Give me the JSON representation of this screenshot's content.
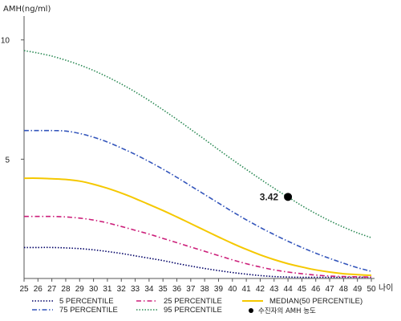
{
  "chart_data": {
    "type": "line",
    "ylabel": "AMH(ng/ml)",
    "xlabel": "나이",
    "xlim": [
      25,
      50
    ],
    "ylim": [
      0,
      11
    ],
    "x_ticks": [
      25,
      26,
      27,
      28,
      29,
      30,
      31,
      32,
      33,
      34,
      35,
      36,
      37,
      38,
      39,
      40,
      41,
      42,
      43,
      44,
      45,
      46,
      47,
      48,
      49,
      50
    ],
    "y_ticks": [
      5,
      10
    ],
    "grid": false,
    "legend_position": "bottom",
    "x": [
      25,
      26,
      27,
      28,
      29,
      30,
      31,
      32,
      33,
      34,
      35,
      36,
      37,
      38,
      39,
      40,
      41,
      42,
      43,
      44,
      45,
      46,
      47,
      48,
      49,
      50
    ],
    "series": [
      {
        "name": "5 PERCENTILE",
        "color": "#000066",
        "dash": "1.5,2",
        "values": [
          1.3,
          1.3,
          1.3,
          1.28,
          1.25,
          1.2,
          1.13,
          1.05,
          0.95,
          0.85,
          0.75,
          0.63,
          0.52,
          0.42,
          0.33,
          0.25,
          0.18,
          0.12,
          0.08,
          0.06,
          0.05,
          0.05,
          0.05,
          0.05,
          0.05,
          0.05
        ]
      },
      {
        "name": "25 PERCENTILE",
        "color": "#cc1f7a",
        "dash": "6,3,1.5,3",
        "values": [
          2.6,
          2.6,
          2.6,
          2.58,
          2.53,
          2.45,
          2.33,
          2.18,
          2.02,
          1.86,
          1.68,
          1.5,
          1.32,
          1.14,
          0.96,
          0.78,
          0.62,
          0.48,
          0.36,
          0.27,
          0.2,
          0.14,
          0.1,
          0.08,
          0.07,
          0.06
        ]
      },
      {
        "name": "MEDIAN(50 PERCENTILE)",
        "color": "#f5c800",
        "dash": "",
        "values": [
          4.2,
          4.2,
          4.18,
          4.15,
          4.08,
          3.95,
          3.78,
          3.58,
          3.35,
          3.1,
          2.85,
          2.58,
          2.3,
          2.02,
          1.74,
          1.47,
          1.22,
          0.99,
          0.79,
          0.62,
          0.48,
          0.36,
          0.27,
          0.2,
          0.16,
          0.13
        ]
      },
      {
        "name": "75 PERCENTILE",
        "color": "#3355bb",
        "dash": "6,2.5,1.5,2.5",
        "values": [
          6.2,
          6.2,
          6.2,
          6.18,
          6.08,
          5.92,
          5.72,
          5.47,
          5.2,
          4.9,
          4.58,
          4.24,
          3.88,
          3.52,
          3.16,
          2.8,
          2.46,
          2.14,
          1.84,
          1.56,
          1.3,
          1.06,
          0.84,
          0.64,
          0.45,
          0.3
        ]
      },
      {
        "name": "95 PERCENTILE",
        "color": "#2e8b57",
        "dash": "1.5,2",
        "values": [
          9.55,
          9.45,
          9.32,
          9.15,
          8.95,
          8.72,
          8.45,
          8.15,
          7.82,
          7.46,
          7.07,
          6.67,
          6.25,
          5.83,
          5.4,
          4.98,
          4.57,
          4.17,
          3.78,
          3.41,
          3.05,
          2.72,
          2.42,
          2.15,
          1.91,
          1.71
        ]
      }
    ],
    "patient_point": {
      "label": "수진자의 AMH 농도",
      "x": 44,
      "y": 3.42,
      "value_label": "3.42",
      "color": "#000000"
    }
  }
}
